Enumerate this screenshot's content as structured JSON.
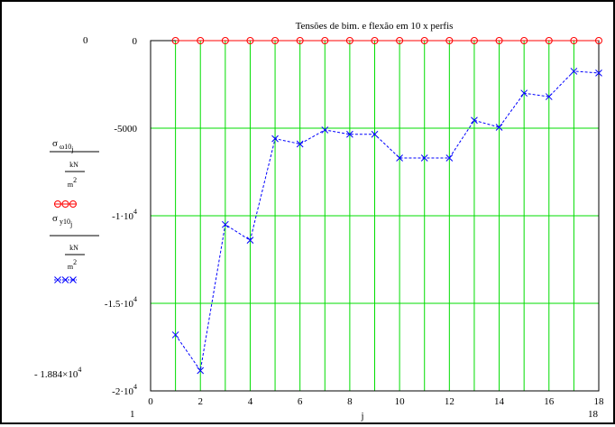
{
  "chart_data": {
    "type": "line",
    "title": "Tensões de bim. e flexão em 10 x perfis",
    "xlabel": "j",
    "x_range_labels": {
      "min": "1",
      "max": "18"
    },
    "y_range_labels": {
      "max": "0",
      "min": "- 1.884×10",
      "min_exp": "4"
    },
    "xlim": [
      0,
      18
    ],
    "ylim": [
      -20000,
      0
    ],
    "x_ticks": [
      0,
      2,
      4,
      6,
      8,
      10,
      12,
      14,
      16,
      18
    ],
    "x_tick_labels": [
      "0",
      "2",
      "4",
      "6",
      "8",
      "10",
      "12",
      "14",
      "16",
      "18"
    ],
    "y_ticks": [
      0,
      -5000,
      -10000,
      -15000,
      -20000
    ],
    "y_tick_labels": [
      {
        "base": "0",
        "exp": ""
      },
      {
        "base": "-5000",
        "exp": ""
      },
      {
        "base": "-1·10",
        "exp": "4"
      },
      {
        "base": "-1.5·10",
        "exp": "4"
      },
      {
        "base": "-2·10",
        "exp": "4"
      }
    ],
    "grid": true,
    "series": [
      {
        "legend_main": "σ",
        "legend_sub": "ω10",
        "legend_subsub": "j",
        "unit_num": "kN",
        "unit_den": "m",
        "unit_exp": "2",
        "color": "#ff0000",
        "marker": "circle",
        "x": [
          1,
          2,
          3,
          4,
          5,
          6,
          7,
          8,
          9,
          10,
          11,
          12,
          13,
          14,
          15,
          16,
          17,
          18
        ],
        "values": [
          0,
          0,
          0,
          0,
          0,
          0,
          0,
          0,
          0,
          0,
          0,
          0,
          0,
          0,
          0,
          0,
          0,
          0
        ]
      },
      {
        "legend_main": "σ",
        "legend_sub": "y10",
        "legend_subsub": "j",
        "unit_num": "kN",
        "unit_den": "m",
        "unit_exp": "2",
        "color": "#0000ff",
        "marker": "x",
        "x": [
          1,
          2,
          3,
          4,
          5,
          6,
          7,
          8,
          9,
          10,
          11,
          12,
          13,
          14,
          15,
          16,
          17,
          18
        ],
        "values": [
          -16800,
          -18840,
          -10500,
          -11400,
          -5600,
          -5900,
          -5100,
          -5350,
          -5350,
          -6700,
          -6700,
          -6700,
          -4550,
          -4950,
          -3000,
          -3200,
          -1750,
          -1850
        ]
      }
    ]
  }
}
